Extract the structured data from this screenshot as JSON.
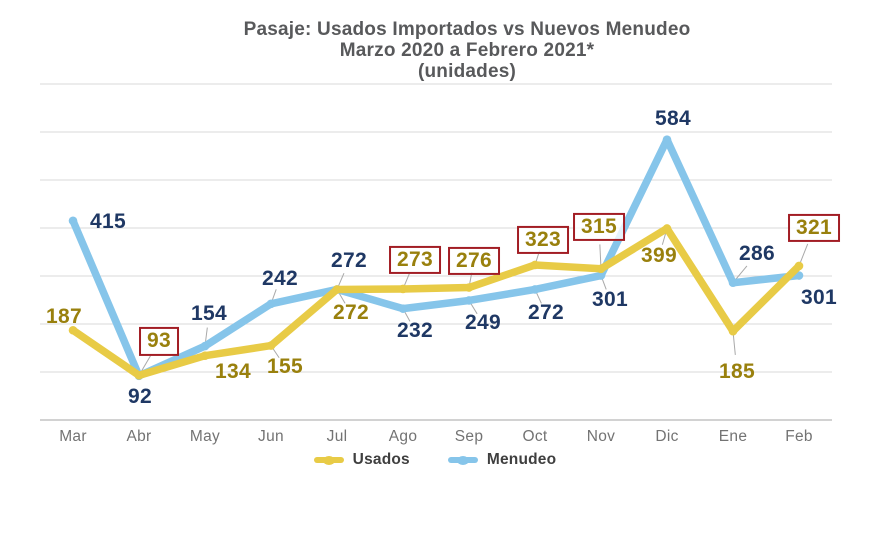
{
  "title": {
    "line1": "Pasaje: Usados Importados  vs Nuevos Menudeo",
    "line2": "Marzo 2020 a Febrero 2021*",
    "line3": "(unidades)"
  },
  "legend": {
    "items": [
      {
        "label": "Usados",
        "color": "#E8CB46"
      },
      {
        "label": "Menudeo",
        "color": "#86C5EA"
      }
    ]
  },
  "colors": {
    "usados_line": "#E8CB46",
    "menudeo_line": "#86C5EA",
    "usados_label": "#99800D",
    "menudeo_label": "#1F3864",
    "highlight_box": "#A21D24",
    "gridline": "#D8D8D8",
    "axis_line": "#C3C3C3",
    "leader_line": "#A9A9A9",
    "title_text": "#58595B",
    "axis_text": "#737373"
  },
  "chart_data": {
    "type": "line",
    "title": "Pasaje: Usados Importados vs Nuevos Menudeo, Marzo 2020 a Febrero 2021* (unidades)",
    "categories": [
      "Mar",
      "Abr",
      "May",
      "Jun",
      "Jul",
      "Ago",
      "Sep",
      "Oct",
      "Nov",
      "Dic",
      "Ene",
      "Feb"
    ],
    "ylim": [
      0,
      700
    ],
    "grid_step": 100,
    "grid_on": true,
    "legend_position": "bottom",
    "box_color": "#A21D24",
    "series": [
      {
        "name": "Usados",
        "color": "#E8CB46",
        "label_color": "#99800D",
        "values": [
          187,
          93,
          134,
          155,
          272,
          273,
          276,
          323,
          315,
          399,
          185,
          321
        ],
        "labels": [
          {
            "dx": -9,
            "dy": -13,
            "boxed": false,
            "leader": false
          },
          {
            "dx": 20,
            "dy": -34,
            "boxed": true,
            "leader": true
          },
          {
            "dx": 28,
            "dy": 16,
            "boxed": false,
            "leader": false
          },
          {
            "dx": 14,
            "dy": 21,
            "boxed": false,
            "leader": true
          },
          {
            "dx": 14,
            "dy": 24,
            "boxed": false,
            "leader": true
          },
          {
            "dx": 12,
            "dy": -29,
            "boxed": true,
            "leader": true
          },
          {
            "dx": 5,
            "dy": -27,
            "boxed": true,
            "leader": true
          },
          {
            "dx": 8,
            "dy": -25,
            "boxed": true,
            "leader": true
          },
          {
            "dx": -2,
            "dy": -42,
            "boxed": true,
            "leader": true
          },
          {
            "dx": -8,
            "dy": 28,
            "boxed": false,
            "leader": true
          },
          {
            "dx": 4,
            "dy": 41,
            "boxed": false,
            "leader": true
          },
          {
            "dx": 15,
            "dy": -38,
            "boxed": true,
            "leader": true
          }
        ]
      },
      {
        "name": "Menudeo",
        "color": "#86C5EA",
        "label_color": "#1F3864",
        "values": [
          415,
          92,
          154,
          242,
          272,
          232,
          249,
          272,
          301,
          584,
          286,
          301
        ],
        "labels": [
          {
            "dx": 35,
            "dy": 1,
            "boxed": false,
            "leader": false
          },
          {
            "dx": 1,
            "dy": 21,
            "boxed": false,
            "leader": false
          },
          {
            "dx": 4,
            "dy": -32,
            "boxed": false,
            "leader": true
          },
          {
            "dx": 9,
            "dy": -25,
            "boxed": false,
            "leader": true
          },
          {
            "dx": 12,
            "dy": -28,
            "boxed": false,
            "leader": true
          },
          {
            "dx": 12,
            "dy": 22,
            "boxed": false,
            "leader": true
          },
          {
            "dx": 14,
            "dy": 23,
            "boxed": false,
            "leader": true
          },
          {
            "dx": 11,
            "dy": 24,
            "boxed": false,
            "leader": true
          },
          {
            "dx": 9,
            "dy": 24,
            "boxed": false,
            "leader": true
          },
          {
            "dx": 6,
            "dy": -21,
            "boxed": false,
            "leader": false
          },
          {
            "dx": 24,
            "dy": -29,
            "boxed": false,
            "leader": true
          },
          {
            "dx": 20,
            "dy": 22,
            "boxed": false,
            "leader": false
          }
        ]
      }
    ]
  }
}
